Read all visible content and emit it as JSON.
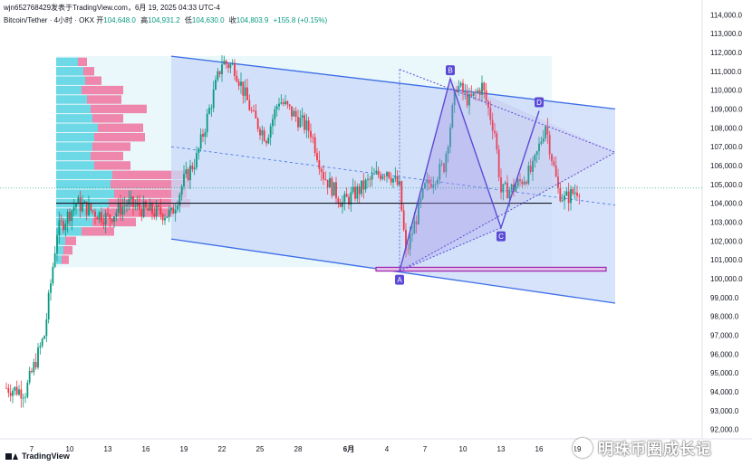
{
  "header": {
    "line1": "wjn652768429发表于TradingView.com，6月 19, 2025 04:33 UTC-4",
    "symbol": "Bitcoin/Tether · 4小时 · OKX",
    "open_label": "开",
    "open": "104,648.0",
    "high_label": "高",
    "high": "104,931.2",
    "low_label": "低",
    "low": "104,630.0",
    "close_label": "收",
    "close": "104,803.9",
    "change": "+155.8 (+0.15%)"
  },
  "footer": {
    "brand": "TradingView"
  },
  "watermark": {
    "text": "明珠币圈成长记"
  },
  "chart_data": {
    "type": "candlestick",
    "y_axis": {
      "ticks": [
        92000,
        93000,
        94000,
        95000,
        96000,
        97000,
        98000,
        99000,
        100000,
        101000,
        102000,
        103000,
        104000,
        105000,
        106000,
        107000,
        108000,
        109000,
        110000,
        111000,
        112000,
        113000,
        114000
      ],
      "tick_labels": [
        "92,000.0",
        "93,000.0",
        "94,000.0",
        "95,000.0",
        "96,000.0",
        "97,000.0",
        "98,000.0",
        "99,000.0",
        "100,000.0",
        "101,000.0",
        "102,000.0",
        "103,000.0",
        "104,000.0",
        "105,000.0",
        "106,000.0",
        "107,000.0",
        "108,000.0",
        "109,000.0",
        "110,000.0",
        "111,000.0",
        "112,000.0",
        "113,000.0",
        "114,000.0"
      ],
      "range": [
        91500,
        114300
      ]
    },
    "x_axis": {
      "tick_labels": [
        "7",
        "10",
        "13",
        "16",
        "19",
        "22",
        "25",
        "28",
        "6月",
        "4",
        "7",
        "10",
        "13",
        "16",
        "19"
      ],
      "tick_dates": [
        "2025-05-07",
        "2025-05-10",
        "2025-05-13",
        "2025-05-16",
        "2025-05-19",
        "2025-05-22",
        "2025-05-25",
        "2025-05-28",
        "2025-06-01",
        "2025-06-04",
        "2025-06-07",
        "2025-06-10",
        "2025-06-13",
        "2025-06-16",
        "2025-06-19"
      ]
    },
    "up_color": "#089981",
    "down_color": "#f23645",
    "channel": {
      "upper": [
        [
          "2025-05-18",
          111800
        ],
        [
          "2025-06-22",
          109000
        ]
      ],
      "lower": [
        [
          "2025-05-18",
          102100
        ],
        [
          "2025-06-22",
          98700
        ]
      ],
      "mid": [
        [
          "2025-05-18",
          107000
        ],
        [
          "2025-06-22",
          103900
        ]
      ],
      "fill": "#c9d9f8"
    },
    "pattern": {
      "points": [
        {
          "label": "A",
          "date": "2025-06-05",
          "price": 100400
        },
        {
          "label": "B",
          "date": "2025-06-09",
          "price": 110600
        },
        {
          "label": "C",
          "date": "2025-06-13",
          "price": 102700
        },
        {
          "label": "D",
          "date": "2025-06-16",
          "price": 108900
        }
      ],
      "apex": [
        "2025-06-22",
        106700
      ],
      "color": "#5b4ad6"
    },
    "horizontal_line": {
      "price": 104000,
      "color": "#131722"
    },
    "support_box": {
      "from": "2025-06-05",
      "to": "2025-06-22",
      "low": 100400,
      "high": 100600,
      "color": "#9c27b0"
    },
    "volume_profile": {
      "rows": [
        {
          "price": 111500,
          "buy": 24,
          "sell": 10
        },
        {
          "price": 111000,
          "buy": 30,
          "sell": 12
        },
        {
          "price": 110500,
          "buy": 32,
          "sell": 18
        },
        {
          "price": 110000,
          "buy": 28,
          "sell": 46
        },
        {
          "price": 109500,
          "buy": 34,
          "sell": 38
        },
        {
          "price": 109000,
          "buy": 38,
          "sell": 62
        },
        {
          "price": 108500,
          "buy": 40,
          "sell": 34
        },
        {
          "price": 108000,
          "buy": 46,
          "sell": 50
        },
        {
          "price": 107500,
          "buy": 42,
          "sell": 56
        },
        {
          "price": 107000,
          "buy": 40,
          "sell": 42
        },
        {
          "price": 106500,
          "buy": 38,
          "sell": 36
        },
        {
          "price": 106000,
          "buy": 42,
          "sell": 40
        },
        {
          "price": 105500,
          "buy": 62,
          "sell": 84
        },
        {
          "price": 105000,
          "buy": 60,
          "sell": 88
        },
        {
          "price": 104500,
          "buy": 64,
          "sell": 80
        },
        {
          "price": 104000,
          "buy": 58,
          "sell": 90
        },
        {
          "price": 103500,
          "buy": 52,
          "sell": 78
        },
        {
          "price": 103000,
          "buy": 40,
          "sell": 48
        },
        {
          "price": 102500,
          "buy": 28,
          "sell": 36
        },
        {
          "price": 102000,
          "buy": 10,
          "sell": 12
        },
        {
          "price": 101500,
          "buy": 8,
          "sell": 10
        },
        {
          "price": 101000,
          "buy": 6,
          "sell": 8
        }
      ],
      "buy_color": "#4dd0e1",
      "sell_color": "#f06292"
    }
  }
}
